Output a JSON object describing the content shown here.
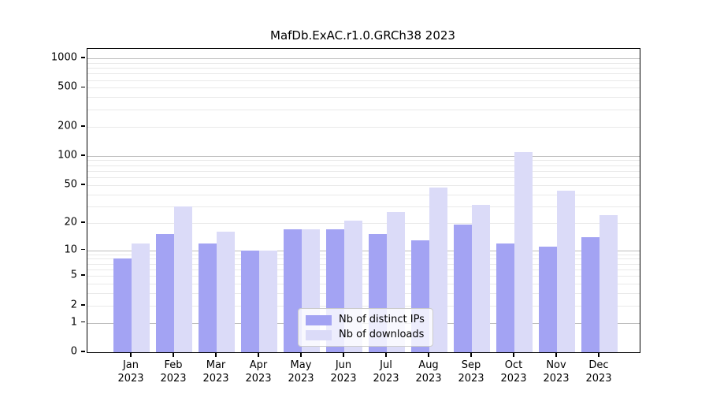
{
  "title": "MafDb.ExAC.r1.0.GRCh38 2023",
  "colors": {
    "distinct_ips_bar": "#a3a3f3",
    "downloads_bar": "#dbdbf8",
    "major_grid": "#bdbdbd",
    "minor_grid": "#e9e9e9"
  },
  "legend": {
    "position": "lower center"
  },
  "chart_data": {
    "type": "bar",
    "title": "MafDb.ExAC.r1.0.GRCh38 2023",
    "xlabel": "",
    "ylabel": "",
    "year": "2023",
    "categories": [
      "Jan",
      "Feb",
      "Mar",
      "Apr",
      "May",
      "Jun",
      "Jul",
      "Aug",
      "Sep",
      "Oct",
      "Nov",
      "Dec"
    ],
    "series": [
      {
        "name": "Nb of distinct IPs",
        "color": "#a3a3f3",
        "values": [
          8,
          15,
          12,
          10,
          17,
          17,
          15,
          13,
          19,
          12,
          11,
          14
        ]
      },
      {
        "name": "Nb of downloads",
        "color": "#dbdbf8",
        "values": [
          12,
          30,
          16,
          10,
          17,
          21,
          26,
          47,
          31,
          110,
          44,
          24
        ]
      }
    ],
    "yscale": "log1p",
    "yticks": [
      0,
      1,
      2,
      5,
      10,
      20,
      50,
      100,
      200,
      500,
      1000
    ],
    "ylim": [
      0,
      1250
    ],
    "grid": true,
    "legend_position": "lower center"
  }
}
